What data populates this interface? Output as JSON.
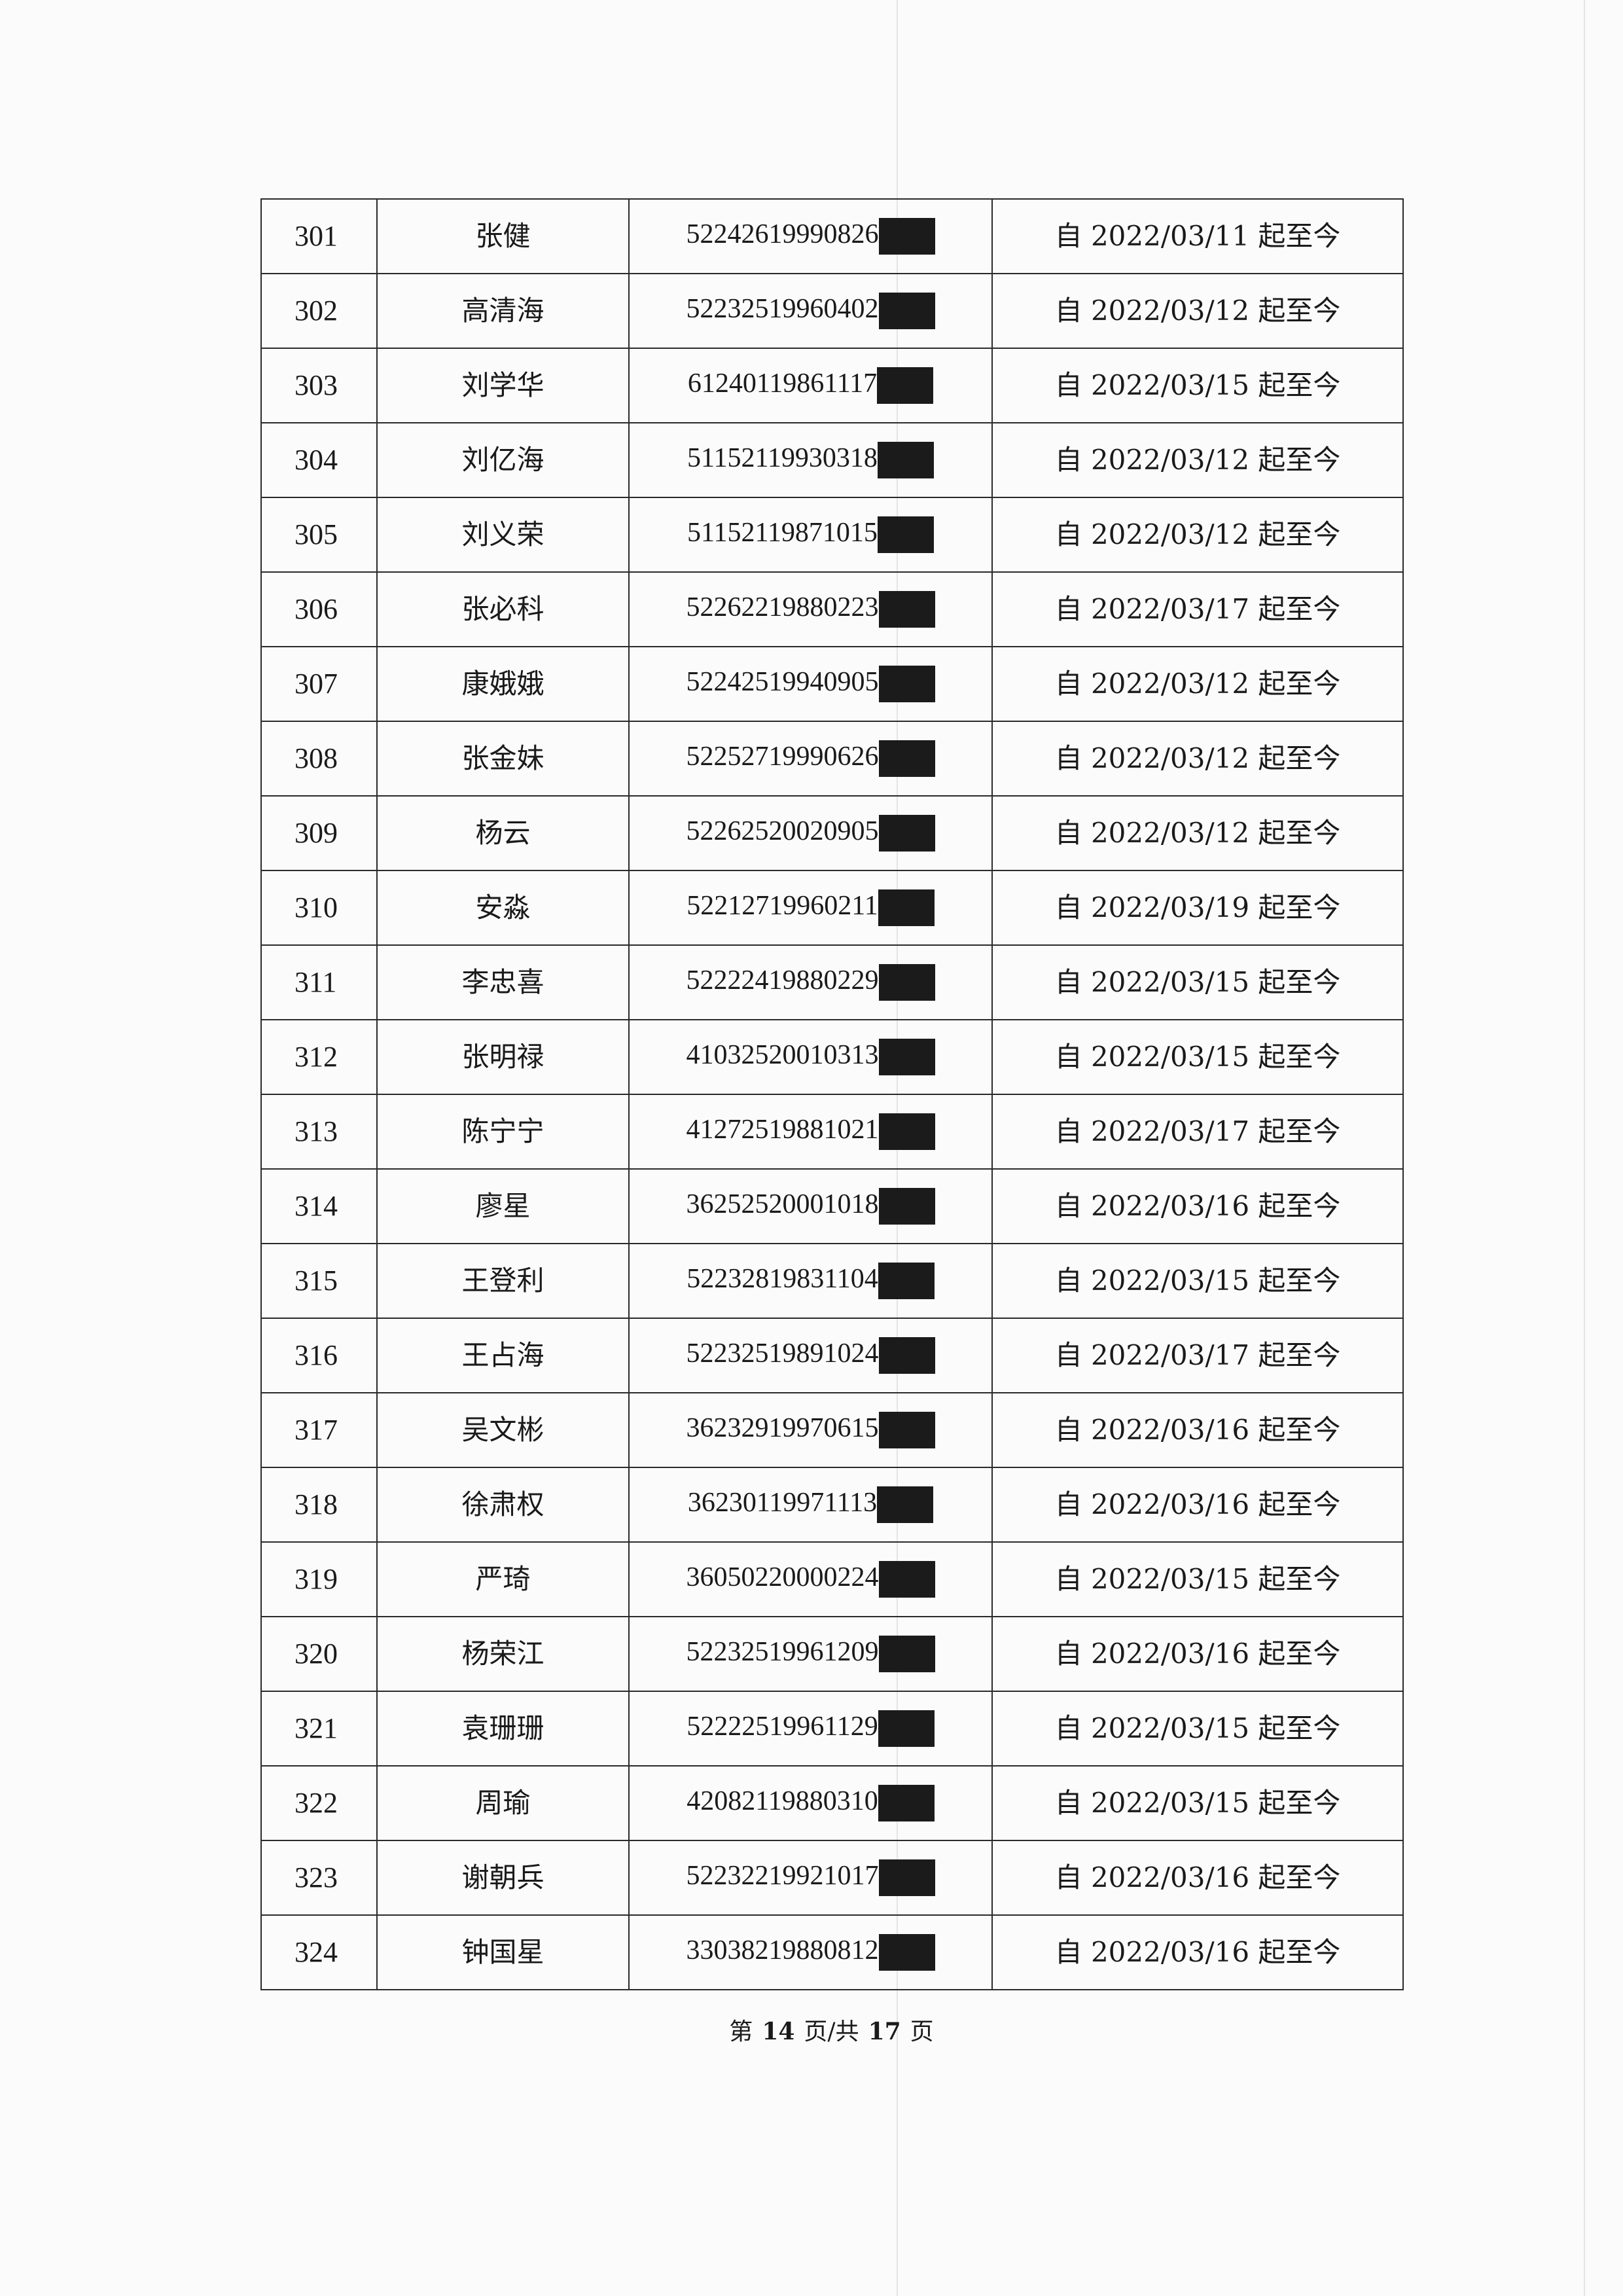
{
  "rows": [
    {
      "no": "301",
      "name": "张健",
      "id": "52242619990826",
      "date": "自 2022/03/11 起至今"
    },
    {
      "no": "302",
      "name": "高清海",
      "id": "52232519960402",
      "date": "自 2022/03/12 起至今"
    },
    {
      "no": "303",
      "name": "刘学华",
      "id": "61240119861117",
      "date": "自 2022/03/15 起至今"
    },
    {
      "no": "304",
      "name": "刘亿海",
      "id": "51152119930318",
      "date": "自 2022/03/12 起至今"
    },
    {
      "no": "305",
      "name": "刘义荣",
      "id": "51152119871015",
      "date": "自 2022/03/12 起至今"
    },
    {
      "no": "306",
      "name": "张必科",
      "id": "52262219880223",
      "date": "自 2022/03/17 起至今"
    },
    {
      "no": "307",
      "name": "康娥娥",
      "id": "52242519940905",
      "date": "自 2022/03/12 起至今"
    },
    {
      "no": "308",
      "name": "张金妹",
      "id": "52252719990626",
      "date": "自 2022/03/12 起至今"
    },
    {
      "no": "309",
      "name": "杨云",
      "id": "52262520020905",
      "date": "自 2022/03/12 起至今"
    },
    {
      "no": "310",
      "name": "安淼",
      "id": "52212719960211",
      "date": "自 2022/03/19 起至今"
    },
    {
      "no": "311",
      "name": "李忠喜",
      "id": "52222419880229",
      "date": "自 2022/03/15 起至今"
    },
    {
      "no": "312",
      "name": "张明禄",
      "id": "41032520010313",
      "date": "自 2022/03/15 起至今"
    },
    {
      "no": "313",
      "name": "陈宁宁",
      "id": "41272519881021",
      "date": "自 2022/03/17 起至今"
    },
    {
      "no": "314",
      "name": "廖星",
      "id": "36252520001018",
      "date": "自 2022/03/16 起至今"
    },
    {
      "no": "315",
      "name": "王登利",
      "id": "52232819831104",
      "date": "自 2022/03/15 起至今"
    },
    {
      "no": "316",
      "name": "王占海",
      "id": "52232519891024",
      "date": "自 2022/03/17 起至今"
    },
    {
      "no": "317",
      "name": "吴文彬",
      "id": "36232919970615",
      "date": "自 2022/03/16 起至今"
    },
    {
      "no": "318",
      "name": "徐肃权",
      "id": "36230119971113",
      "date": "自 2022/03/16 起至今"
    },
    {
      "no": "319",
      "name": "严琦",
      "id": "36050220000224",
      "date": "自 2022/03/15 起至今"
    },
    {
      "no": "320",
      "name": "杨荣江",
      "id": "52232519961209",
      "date": "自 2022/03/16 起至今"
    },
    {
      "no": "321",
      "name": "袁珊珊",
      "id": "52222519961129",
      "date": "自 2022/03/15 起至今"
    },
    {
      "no": "322",
      "name": "周瑜",
      "id": "42082119880310",
      "date": "自 2022/03/15 起至今"
    },
    {
      "no": "323",
      "name": "谢朝兵",
      "id": "52232219921017",
      "date": "自 2022/03/16 起至今"
    },
    {
      "no": "324",
      "name": "钟国星",
      "id": "33038219880812",
      "date": "自 2022/03/16 起至今"
    }
  ],
  "footer": {
    "prefix": "第",
    "page": "14",
    "middle": "页/共",
    "total": "17",
    "suffix": "页"
  }
}
